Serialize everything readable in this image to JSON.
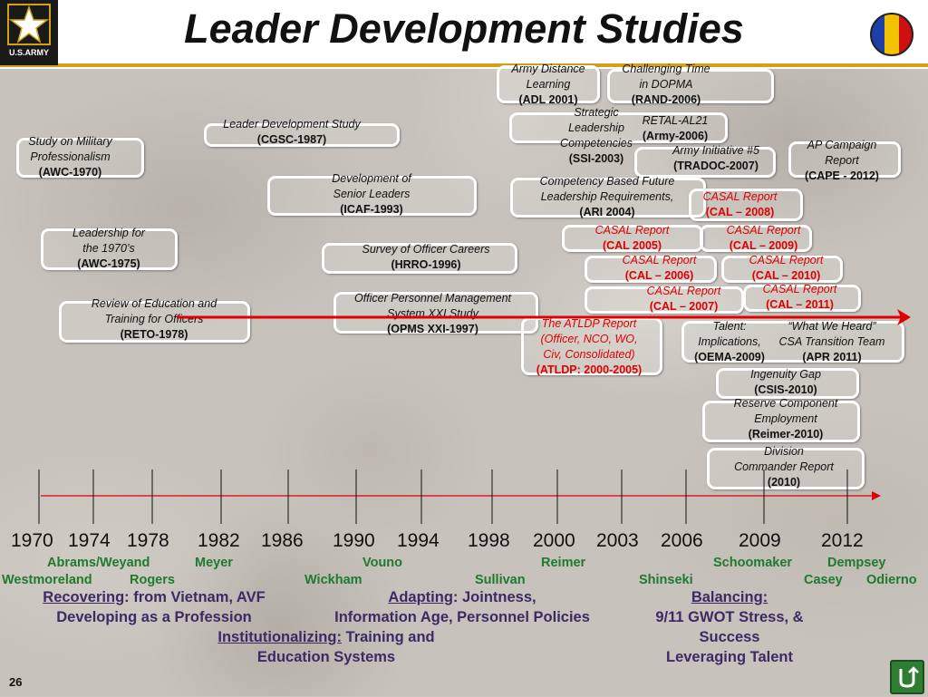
{
  "title": "Leader Development Studies",
  "logo": {
    "text": "U.S.ARMY",
    "icon": "army-star-logo"
  },
  "studies": [
    {
      "id": "adl",
      "lines": [
        {
          "t": "Army Distance",
          "s": "i"
        },
        {
          "t": "Learning",
          "s": "i"
        },
        {
          "t": "(ADL 2001)",
          "s": "b"
        }
      ]
    },
    {
      "id": "rand",
      "lines": [
        {
          "t": "Challenging Time",
          "s": "i"
        },
        {
          "t": "in DOPMA",
          "s": "i"
        },
        {
          "t": "(RAND-2006)",
          "s": "b"
        }
      ]
    },
    {
      "id": "ssi",
      "lines": [
        {
          "t": "Strategic",
          "s": "i"
        },
        {
          "t": "Leadership",
          "s": "i"
        },
        {
          "t": "Competencies",
          "s": "i"
        },
        {
          "t": "(SSI-2003)",
          "s": "b"
        }
      ]
    },
    {
      "id": "retal",
      "lines": [
        {
          "t": "RETAL-AL21",
          "s": "i"
        },
        {
          "t": "(Army-2006)",
          "s": "b"
        }
      ]
    },
    {
      "id": "tradoc",
      "lines": [
        {
          "t": "Army Initiative #5",
          "s": "i"
        },
        {
          "t": "(TRADOC-2007)",
          "s": "b"
        }
      ]
    },
    {
      "id": "cgsc",
      "lines": [
        {
          "t": "Leader Development Study",
          "s": "i"
        },
        {
          "t": "(CGSC-1987)",
          "s": "b"
        }
      ]
    },
    {
      "id": "awc1970",
      "lines": [
        {
          "t": "Study on Military",
          "s": "i"
        },
        {
          "t": "Professionalism",
          "s": "i"
        },
        {
          "t": "(AWC-1970)",
          "s": "b"
        }
      ]
    },
    {
      "id": "cape",
      "lines": [
        {
          "t": "AP Campaign",
          "s": "i"
        },
        {
          "t": "Report",
          "s": "i"
        },
        {
          "t": "(CAPE - 2012)",
          "s": "b"
        }
      ]
    },
    {
      "id": "icaf",
      "lines": [
        {
          "t": "Development of",
          "s": "i"
        },
        {
          "t": "Senior Leaders",
          "s": "i"
        },
        {
          "t": "(ICAF-1993)",
          "s": "b"
        }
      ]
    },
    {
      "id": "ari",
      "lines": [
        {
          "t": "Competency Based Future",
          "s": "i"
        },
        {
          "t": "Leadership Requirements,",
          "s": "i"
        },
        {
          "t": "(ARI 2004)",
          "s": "b"
        }
      ]
    },
    {
      "id": "cal2008",
      "red": true,
      "lines": [
        {
          "t": "CASAL Report",
          "s": "i"
        },
        {
          "t": "(CAL – 2008)",
          "s": "b"
        }
      ]
    },
    {
      "id": "awc1975",
      "lines": [
        {
          "t": "Leadership for",
          "s": "i"
        },
        {
          "t": "the 1970’s",
          "s": "i"
        },
        {
          "t": "(AWC-1975)",
          "s": "b"
        }
      ]
    },
    {
      "id": "hrro",
      "lines": [
        {
          "t": "Survey of Officer Careers",
          "s": "i"
        },
        {
          "t": "(HRRO-1996)",
          "s": "b"
        }
      ]
    },
    {
      "id": "cal2005",
      "red": true,
      "lines": [
        {
          "t": "CASAL Report",
          "s": "i"
        },
        {
          "t": "(CAL 2005)",
          "s": "b"
        }
      ]
    },
    {
      "id": "cal2009",
      "red": true,
      "lines": [
        {
          "t": "CASAL Report",
          "s": "i"
        },
        {
          "t": "(CAL – 2009)",
          "s": "b"
        }
      ]
    },
    {
      "id": "cal2006",
      "red": true,
      "lines": [
        {
          "t": "CASAL Report",
          "s": "i"
        },
        {
          "t": "(CAL – 2006)",
          "s": "b"
        }
      ]
    },
    {
      "id": "cal2010",
      "red": true,
      "lines": [
        {
          "t": "CASAL Report",
          "s": "i"
        },
        {
          "t": "(CAL – 2010)",
          "s": "b"
        }
      ]
    },
    {
      "id": "cal2007",
      "red": true,
      "lines": [
        {
          "t": "CASAL Report",
          "s": "i"
        },
        {
          "t": "(CAL – 2007)",
          "s": "b"
        }
      ]
    },
    {
      "id": "cal2011",
      "red": true,
      "lines": [
        {
          "t": "CASAL Report",
          "s": "i"
        },
        {
          "t": "(CAL – 2011)",
          "s": "b"
        }
      ]
    },
    {
      "id": "reto",
      "lines": [
        {
          "t": "Review of Education and",
          "s": "i"
        },
        {
          "t": "Training for Officers",
          "s": "i"
        },
        {
          "t": "(RETO-1978)",
          "s": "b"
        }
      ]
    },
    {
      "id": "opms",
      "lines": [
        {
          "t": "Officer Personnel Management",
          "s": "i"
        },
        {
          "t": "System XXI Study",
          "s": "i"
        },
        {
          "t": "(OPMS XXI-1997)",
          "s": "b"
        }
      ]
    },
    {
      "id": "atldp",
      "red": true,
      "lines": [
        {
          "t": "The ATLDP Report",
          "s": "i"
        },
        {
          "t": "(Officer, NCO, WO,",
          "s": "i"
        },
        {
          "t": "Civ, Consolidated)",
          "s": "i"
        },
        {
          "t": "(ATLDP: 2000-2005)",
          "s": "b"
        }
      ]
    },
    {
      "id": "oema",
      "lines": [
        {
          "t": "Talent:",
          "s": "i"
        },
        {
          "t": "Implications,",
          "s": "i"
        },
        {
          "t": "(OEMA-2009)",
          "s": "b"
        }
      ]
    },
    {
      "id": "apr",
      "lines": [
        {
          "t": "“What We Heard”",
          "s": "i"
        },
        {
          "t": "CSA Transition Team",
          "s": "i"
        },
        {
          "t": "(APR 2011)",
          "s": "b"
        }
      ]
    },
    {
      "id": "csis",
      "lines": [
        {
          "t": "Ingenuity Gap",
          "s": "i"
        },
        {
          "t": "(CSIS-2010)",
          "s": "b"
        }
      ]
    },
    {
      "id": "reimer",
      "lines": [
        {
          "t": "Reserve Component",
          "s": "i"
        },
        {
          "t": "Employment",
          "s": "i"
        },
        {
          "t": "(Reimer-2010)",
          "s": "b"
        }
      ]
    },
    {
      "id": "division",
      "lines": [
        {
          "t": "Division",
          "s": "i"
        },
        {
          "t": "Commander Report",
          "s": "i"
        },
        {
          "t": "(2010)",
          "s": "b"
        }
      ]
    }
  ],
  "timeline": {
    "years": [
      "1970",
      "1974",
      "1978",
      "1982",
      "1986",
      "1990",
      "1994",
      "1998",
      "2000",
      "2003",
      "2006",
      "2009",
      "2012"
    ]
  },
  "chiefs": [
    "Abrams/Weyand",
    "Meyer",
    "Vouno",
    "Reimer",
    "Schoomaker",
    "Dempsey",
    "Westmoreland",
    "Rogers",
    "Wickham",
    "Sullivan",
    "Shinseki",
    "Casey",
    "Odierno"
  ],
  "eras": {
    "recovering": {
      "head": "Recovering",
      "rest": ": from Vietnam, AVF",
      "line2": "Developing as a Profession"
    },
    "adapting": {
      "head": "Adapting",
      "rest": ":  Jointness,",
      "line2": "Information Age, Personnel Policies"
    },
    "institutionalizing": {
      "head": "Institutionalizing:",
      "rest": " Training and",
      "line2": "Education Systems"
    },
    "balancing": {
      "head": "Balancing:",
      "line2": "9/11 GWOT Stress, &",
      "line3": "Success",
      "line4": "Leveraging Talent"
    }
  },
  "page_number": "26",
  "colors": {
    "name_green": "#1f7a2e",
    "era_purple": "#3b2a66",
    "red": "#e00000",
    "gold": "#d4a017"
  }
}
